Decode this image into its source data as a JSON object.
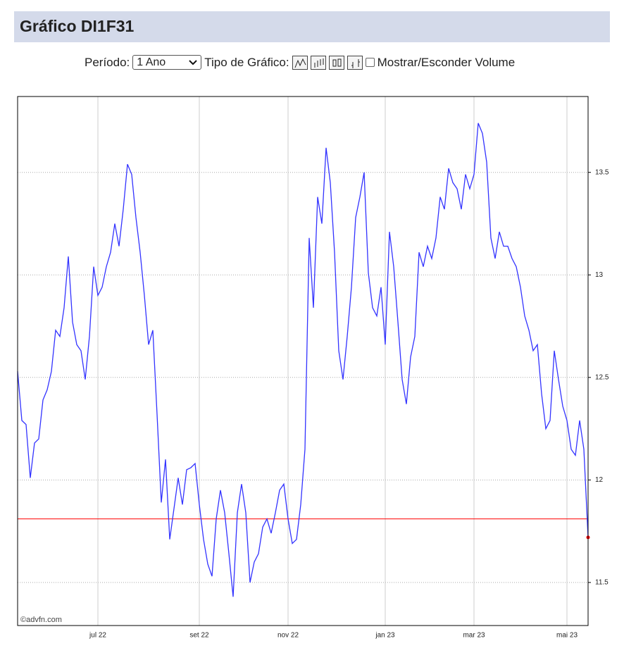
{
  "header": {
    "title": "Gráfico DI1F31"
  },
  "controls": {
    "period_label": "Período:",
    "period_value": "1 Ano",
    "chart_type_label": "Tipo de Gráfico:",
    "volume_label": "Mostrar/Esconder Volume"
  },
  "chart_data": {
    "type": "line",
    "watermark": "©advfn.com",
    "categories": [
      null,
      null,
      null,
      null,
      null,
      null,
      null,
      null,
      null,
      null,
      null,
      null,
      null,
      null,
      null,
      null,
      null,
      null,
      null,
      "jul 22",
      null,
      null,
      null,
      null,
      null,
      null,
      null,
      null,
      null,
      null,
      null,
      null,
      null,
      null,
      null,
      null,
      null,
      null,
      null,
      null,
      null,
      null,
      null,
      "set 22",
      null,
      null,
      null,
      null,
      null,
      null,
      null,
      null,
      null,
      null,
      null,
      null,
      null,
      null,
      null,
      null,
      null,
      null,
      null,
      null,
      "nov 22",
      null,
      null,
      null,
      null,
      null,
      null,
      null,
      null,
      null,
      null,
      null,
      null,
      null,
      null,
      null,
      null,
      null,
      null,
      null,
      null,
      null,
      null,
      "jan 23",
      null,
      null,
      null,
      null,
      null,
      null,
      null,
      null,
      null,
      null,
      null,
      null,
      null,
      null,
      null,
      null,
      null,
      null,
      null,
      null,
      "mar 23",
      null,
      null,
      null,
      null,
      null,
      null,
      null,
      null,
      null,
      null,
      null,
      null,
      null,
      null,
      null,
      null,
      null,
      null,
      null,
      null,
      null,
      "mai 23",
      null,
      null,
      null,
      null,
      null
    ],
    "series": [
      {
        "color": "#3333ff",
        "values": [
          12.53,
          12.29,
          12.27,
          12.01,
          12.18,
          12.2,
          12.39,
          12.44,
          12.53,
          12.73,
          12.7,
          12.84,
          13.09,
          12.77,
          12.66,
          12.63,
          12.49,
          12.7,
          13.04,
          12.9,
          12.94,
          13.04,
          13.11,
          13.25,
          13.14,
          13.32,
          13.54,
          13.49,
          13.28,
          13.11,
          12.9,
          12.66,
          12.73,
          12.32,
          11.89,
          12.1,
          11.71,
          11.86,
          12.01,
          11.88,
          12.05,
          12.06,
          12.08,
          11.88,
          11.71,
          11.59,
          11.53,
          11.81,
          11.95,
          11.84,
          11.64,
          11.43,
          11.84,
          11.98,
          11.84,
          11.5,
          11.6,
          11.64,
          11.77,
          11.81,
          11.74,
          11.84,
          11.95,
          11.98,
          11.81,
          11.69,
          11.71,
          11.88,
          12.15,
          13.18,
          12.84,
          13.38,
          13.25,
          13.62,
          13.45,
          13.11,
          12.63,
          12.49,
          12.7,
          12.94,
          13.28,
          13.38,
          13.5,
          13.01,
          12.84,
          12.8,
          12.94,
          12.66,
          13.21,
          13.04,
          12.77,
          12.49,
          12.37,
          12.6,
          12.7,
          13.11,
          13.04,
          13.14,
          13.08,
          13.18,
          13.38,
          13.32,
          13.52,
          13.45,
          13.42,
          13.32,
          13.49,
          13.42,
          13.49,
          13.74,
          13.69,
          13.55,
          13.18,
          13.08,
          13.21,
          13.14,
          13.14,
          13.08,
          13.04,
          12.94,
          12.8,
          12.73,
          12.63,
          12.66,
          12.42,
          12.25,
          12.29,
          12.63,
          12.49,
          12.36,
          12.29,
          12.15,
          12.12,
          12.29,
          12.15,
          11.72
        ]
      }
    ],
    "last_point_color": "#ff0000",
    "reference_line": {
      "value": 11.81,
      "color": "#ff0000"
    },
    "ylim": [
      11.29,
      13.87
    ],
    "yticks": [
      11.5,
      12,
      12.5,
      13,
      13.5
    ],
    "grid": true
  }
}
